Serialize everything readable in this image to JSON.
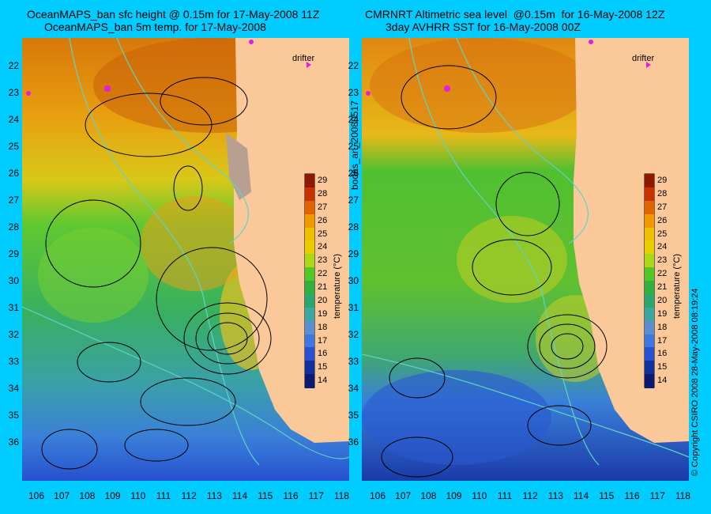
{
  "panels": [
    {
      "title_line1": "OceanMAPS_ban sfc height @ 0.15m for 17-May-2008 11Z",
      "title_line2": "OceanMAPS_ban 5m temp. for 17-May-2008",
      "drifter_label": "drifter"
    },
    {
      "title_line1": "CMRNRT Altimetric sea level  @0.15m  for 16-May-2008 12Z",
      "title_line2": "3day AVHRR SST for 16-May-2008 00Z",
      "drifter_label": "drifter"
    }
  ],
  "lat_labels": [
    "22",
    "23",
    "24",
    "25",
    "26",
    "27",
    "28",
    "29",
    "30",
    "31",
    "32",
    "33",
    "34",
    "35",
    "36"
  ],
  "lon_labels": [
    "106",
    "107",
    "108",
    "109",
    "110",
    "111",
    "112",
    "113",
    "114",
    "115",
    "116",
    "117",
    "118"
  ],
  "colorbar": {
    "label": "temperature (°C)",
    "ticks": [
      "29",
      "28",
      "27",
      "26",
      "25",
      "24",
      "23",
      "22",
      "21",
      "20",
      "19",
      "18",
      "17",
      "16",
      "15",
      "14"
    ],
    "colors": [
      "#8b1a00",
      "#c83200",
      "#e06400",
      "#f09a00",
      "#f0c000",
      "#e8d000",
      "#a8d818",
      "#50c828",
      "#30b040",
      "#28a870",
      "#3aa8a0",
      "#5a8ed0",
      "#3c78e0",
      "#2850d0",
      "#1030a0",
      "#0a1a70"
    ]
  },
  "side_texts": {
    "middle": "bodas_an_20080517",
    "right": "© Copyright CSIRO 2008   28-May-2008 08:19:24"
  },
  "colors": {
    "background": "#00ccff",
    "land": "#fbc999",
    "contour": "#000000",
    "isobath": "#5fd3c8",
    "drifter": "#e020e0"
  }
}
